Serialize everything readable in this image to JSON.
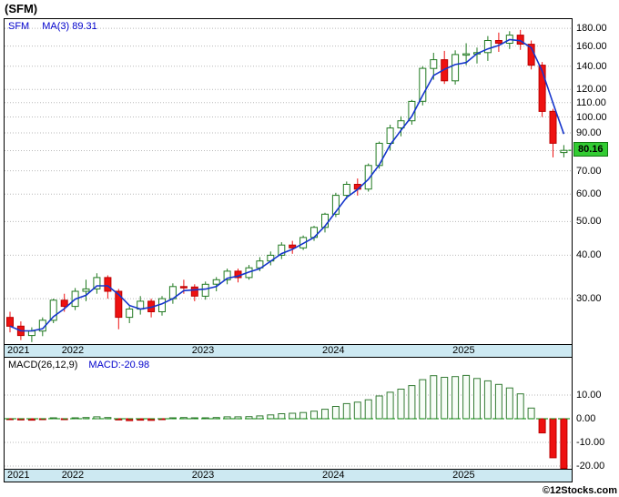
{
  "header": {
    "title": "(SFM)"
  },
  "main": {
    "legend_symbol": "SFM",
    "legend_ma": "MA(3) 89.31",
    "last_price_badge": "80.16"
  },
  "macd": {
    "legend_label": "MACD(26,12,9)",
    "legend_value": "MACD:-20.98"
  },
  "footer": {
    "credit": "©12Stocks.com"
  },
  "colors": {
    "up_green": "#217a21",
    "down_red": "#ee1111",
    "down_red_stroke": "#bb0000",
    "ma_blue": "#1535cc",
    "band_blue": "#cde9f2",
    "badge_green": "#33cc33",
    "grid_gray": "#b9b9b9",
    "zero_dash_green": "#008800",
    "pos_bar_fill": "#f7fdf7",
    "pos_bar_stroke": "#337a33",
    "last_price_dash": "#2aa52a"
  },
  "chart_data": [
    {
      "type": "candlestick",
      "symbol": "SFM",
      "title": "(SFM) monthly price",
      "y_scale": "log",
      "y_ticks": [
        180,
        160,
        140,
        120,
        110,
        100,
        90,
        80,
        70,
        60,
        50,
        40,
        30
      ],
      "ylim": [
        22.2,
        191.3
      ],
      "ma_period": 3,
      "ma_last": 89.31,
      "last_close": 80.16,
      "x_year_ticks": [
        {
          "label": "2021",
          "index": 0
        },
        {
          "label": "2022",
          "index": 5
        },
        {
          "label": "2023",
          "index": 17
        },
        {
          "label": "2024",
          "index": 29
        },
        {
          "label": "2025",
          "index": 41
        }
      ],
      "candles": [
        {
          "t": "2021-08",
          "o": 26.5,
          "h": 27.5,
          "l": 24.0,
          "c": 25.0
        },
        {
          "t": "2021-09",
          "o": 25.0,
          "h": 25.8,
          "l": 22.8,
          "c": 23.5
        },
        {
          "t": "2021-10",
          "o": 23.5,
          "h": 24.8,
          "l": 22.5,
          "c": 24.2
        },
        {
          "t": "2021-11",
          "o": 24.2,
          "h": 26.5,
          "l": 23.4,
          "c": 26.0
        },
        {
          "t": "2021-12",
          "o": 26.0,
          "h": 30.0,
          "l": 25.5,
          "c": 29.7
        },
        {
          "t": "2022-01",
          "o": 29.7,
          "h": 31.0,
          "l": 27.5,
          "c": 28.5
        },
        {
          "t": "2022-02",
          "o": 28.5,
          "h": 32.2,
          "l": 27.8,
          "c": 31.5
        },
        {
          "t": "2022-03",
          "o": 31.5,
          "h": 34.0,
          "l": 29.5,
          "c": 32.0
        },
        {
          "t": "2022-04",
          "o": 32.0,
          "h": 35.5,
          "l": 31.0,
          "c": 34.5
        },
        {
          "t": "2022-05",
          "o": 34.5,
          "h": 35.0,
          "l": 30.0,
          "c": 31.5
        },
        {
          "t": "2022-06",
          "o": 31.5,
          "h": 32.0,
          "l": 24.5,
          "c": 26.5
        },
        {
          "t": "2022-07",
          "o": 26.5,
          "h": 28.5,
          "l": 25.5,
          "c": 28.0
        },
        {
          "t": "2022-08",
          "o": 28.0,
          "h": 30.5,
          "l": 27.0,
          "c": 29.5
        },
        {
          "t": "2022-09",
          "o": 29.5,
          "h": 30.0,
          "l": 26.5,
          "c": 27.5
        },
        {
          "t": "2022-10",
          "o": 27.5,
          "h": 30.5,
          "l": 26.8,
          "c": 30.0
        },
        {
          "t": "2022-11",
          "o": 30.0,
          "h": 33.2,
          "l": 29.0,
          "c": 32.5
        },
        {
          "t": "2022-12",
          "o": 32.5,
          "h": 34.0,
          "l": 31.0,
          "c": 32.4
        },
        {
          "t": "2023-01",
          "o": 32.4,
          "h": 33.0,
          "l": 29.5,
          "c": 30.5
        },
        {
          "t": "2023-02",
          "o": 30.5,
          "h": 33.6,
          "l": 29.8,
          "c": 33.0
        },
        {
          "t": "2023-03",
          "o": 33.0,
          "h": 34.6,
          "l": 31.5,
          "c": 34.0
        },
        {
          "t": "2023-04",
          "o": 34.0,
          "h": 36.6,
          "l": 33.0,
          "c": 36.0
        },
        {
          "t": "2023-05",
          "o": 36.0,
          "h": 36.6,
          "l": 33.4,
          "c": 34.5
        },
        {
          "t": "2023-06",
          "o": 34.5,
          "h": 37.5,
          "l": 34.0,
          "c": 36.8
        },
        {
          "t": "2023-07",
          "o": 36.8,
          "h": 39.5,
          "l": 36.0,
          "c": 38.5
        },
        {
          "t": "2023-08",
          "o": 38.5,
          "h": 41.0,
          "l": 37.4,
          "c": 40.0
        },
        {
          "t": "2023-09",
          "o": 40.0,
          "h": 43.6,
          "l": 39.0,
          "c": 42.8
        },
        {
          "t": "2023-10",
          "o": 42.8,
          "h": 44.0,
          "l": 40.4,
          "c": 42.0
        },
        {
          "t": "2023-11",
          "o": 42.0,
          "h": 45.6,
          "l": 41.4,
          "c": 45.0
        },
        {
          "t": "2023-12",
          "o": 45.0,
          "h": 48.6,
          "l": 44.0,
          "c": 48.1
        },
        {
          "t": "2024-01",
          "o": 48.1,
          "h": 53.0,
          "l": 46.5,
          "c": 52.5
        },
        {
          "t": "2024-02",
          "o": 52.5,
          "h": 60.5,
          "l": 51.5,
          "c": 59.5
        },
        {
          "t": "2024-03",
          "o": 59.5,
          "h": 65.2,
          "l": 58.0,
          "c": 64.0
        },
        {
          "t": "2024-04",
          "o": 64.0,
          "h": 66.5,
          "l": 59.4,
          "c": 62.0
        },
        {
          "t": "2024-05",
          "o": 62.0,
          "h": 73.5,
          "l": 61.0,
          "c": 72.5
        },
        {
          "t": "2024-06",
          "o": 72.5,
          "h": 85.0,
          "l": 71.0,
          "c": 84.0
        },
        {
          "t": "2024-07",
          "o": 84.0,
          "h": 95.0,
          "l": 80.0,
          "c": 93.0
        },
        {
          "t": "2024-08",
          "o": 93.0,
          "h": 100.5,
          "l": 88.0,
          "c": 97.5
        },
        {
          "t": "2024-09",
          "o": 97.5,
          "h": 112.0,
          "l": 95.0,
          "c": 110.9
        },
        {
          "t": "2024-10",
          "o": 110.9,
          "h": 140.0,
          "l": 108.0,
          "c": 138.0
        },
        {
          "t": "2024-11",
          "o": 138.0,
          "h": 153.0,
          "l": 128.0,
          "c": 146.2
        },
        {
          "t": "2024-12",
          "o": 146.2,
          "h": 155.0,
          "l": 124.5,
          "c": 127.1
        },
        {
          "t": "2025-01",
          "o": 127.1,
          "h": 155.5,
          "l": 124.0,
          "c": 151.3
        },
        {
          "t": "2025-02",
          "o": 151.3,
          "h": 163.0,
          "l": 141.0,
          "c": 152.0
        },
        {
          "t": "2025-03",
          "o": 152.0,
          "h": 158.5,
          "l": 142.5,
          "c": 153.2
        },
        {
          "t": "2025-04",
          "o": 153.2,
          "h": 171.0,
          "l": 145.0,
          "c": 166.0
        },
        {
          "t": "2025-05",
          "o": 166.0,
          "h": 175.0,
          "l": 154.0,
          "c": 163.0
        },
        {
          "t": "2025-06",
          "o": 163.0,
          "h": 176.5,
          "l": 157.0,
          "c": 172.0
        },
        {
          "t": "2025-07",
          "o": 172.0,
          "h": 178.0,
          "l": 156.0,
          "c": 162.0
        },
        {
          "t": "2025-08",
          "o": 162.0,
          "h": 166.0,
          "l": 137.0,
          "c": 141.0
        },
        {
          "t": "2025-09",
          "o": 141.0,
          "h": 144.0,
          "l": 100.0,
          "c": 103.8
        },
        {
          "t": "2025-10",
          "o": 103.8,
          "h": 105.5,
          "l": 76.5,
          "c": 84.0
        },
        {
          "t": "2025-11",
          "o": 79.0,
          "h": 83.0,
          "l": 76.5,
          "c": 80.16
        }
      ]
    },
    {
      "type": "bar",
      "title": "MACD(26,12,9)",
      "last_value": -20.98,
      "y_ticks": [
        10,
        0,
        -10,
        -20
      ],
      "ylim": [
        -25,
        21
      ],
      "zero_line": "dashed-green",
      "values": [
        -0.2,
        -0.5,
        -0.6,
        -0.3,
        0.3,
        -0.1,
        0.2,
        0.5,
        0.8,
        0.5,
        -0.5,
        -0.8,
        -0.6,
        -0.7,
        -0.4,
        0.2,
        0.5,
        0.3,
        0.3,
        0.5,
        0.8,
        0.8,
        0.9,
        1.2,
        1.6,
        2.1,
        2.3,
        2.6,
        3.2,
        4.0,
        5.2,
        6.4,
        7.0,
        8.0,
        9.6,
        11.2,
        12.5,
        14.0,
        16.5,
        18.2,
        17.5,
        17.8,
        18.3,
        17.0,
        16.0,
        14.5,
        13.0,
        10.5,
        4.5,
        -6.0,
        -16.5,
        -20.98
      ]
    }
  ]
}
